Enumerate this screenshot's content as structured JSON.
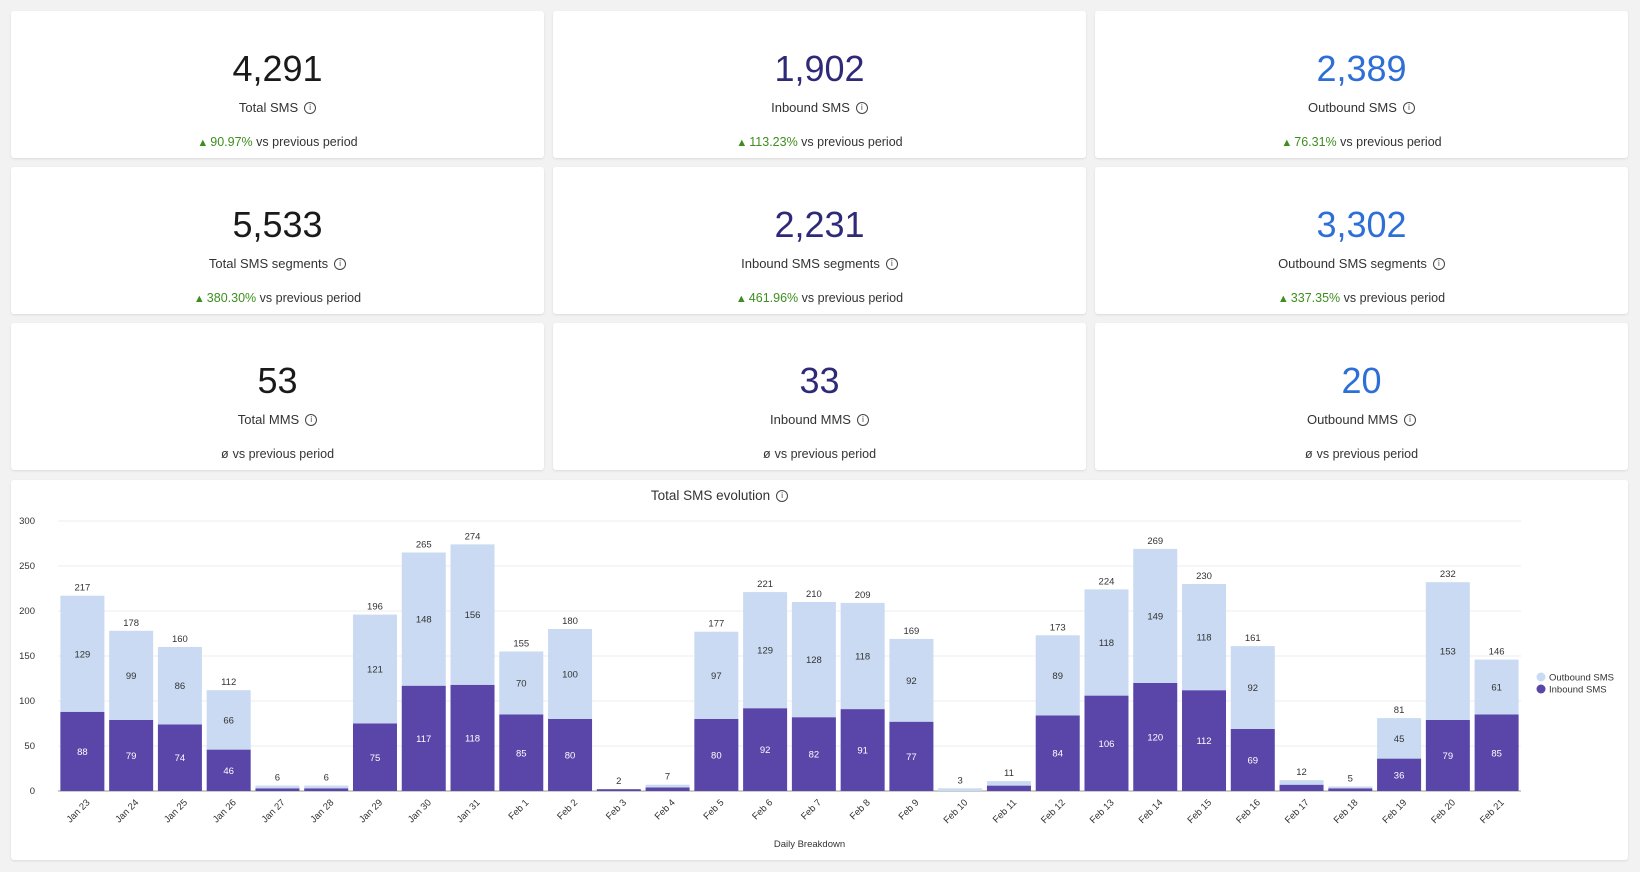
{
  "cards": [
    {
      "value": "4,291",
      "label": "Total SMS",
      "pct": "90.97%",
      "trend": "up",
      "compare_text": "vs previous period"
    },
    {
      "value": "1,902",
      "label": "Inbound SMS",
      "pct": "113.23%",
      "trend": "up",
      "compare_text": "vs previous period"
    },
    {
      "value": "2,389",
      "label": "Outbound SMS",
      "pct": "76.31%",
      "trend": "up",
      "compare_text": "vs previous period"
    },
    {
      "value": "5,533",
      "label": "Total SMS segments",
      "pct": "380.30%",
      "trend": "up",
      "compare_text": "vs previous period"
    },
    {
      "value": "2,231",
      "label": "Inbound SMS segments",
      "pct": "461.96%",
      "trend": "up",
      "compare_text": "vs previous period"
    },
    {
      "value": "3,302",
      "label": "Outbound SMS segments",
      "pct": "337.35%",
      "trend": "up",
      "compare_text": "vs previous period"
    },
    {
      "value": "53",
      "label": "Total MMS",
      "pct": "ø",
      "trend": "none",
      "compare_text": "vs previous period"
    },
    {
      "value": "33",
      "label": "Inbound MMS",
      "pct": "ø",
      "trend": "none",
      "compare_text": "vs previous period"
    },
    {
      "value": "20",
      "label": "Outbound MMS",
      "pct": "ø",
      "trend": "none",
      "compare_text": "vs previous period"
    }
  ],
  "icons": {
    "info": "info-icon",
    "trend_up": "triangle-up-icon"
  },
  "colors": {
    "inbound": "#5a45a8",
    "outbound": "#c9daf2",
    "total_value": "#1a1a1a",
    "inbound_value": "#2e2a78",
    "outbound_value": "#2d6fd6",
    "trend_up": "#3e8e1e"
  },
  "chart_data": {
    "type": "bar",
    "stacked": true,
    "title": "Total SMS evolution",
    "xlabel": "Daily Breakdown",
    "ylabel": "",
    "ylim": [
      0,
      300
    ],
    "yticks": [
      0,
      50,
      100,
      150,
      200,
      250,
      300
    ],
    "grid": true,
    "legend_position": "right",
    "categories": [
      "Jan 23",
      "Jan 24",
      "Jan 25",
      "Jan 26",
      "Jan 27",
      "Jan 28",
      "Jan 29",
      "Jan 30",
      "Jan 31",
      "Feb 1",
      "Feb 2",
      "Feb 3",
      "Feb 4",
      "Feb 5",
      "Feb 6",
      "Feb 7",
      "Feb 8",
      "Feb 9",
      "Feb 10",
      "Feb 11",
      "Feb 12",
      "Feb 13",
      "Feb 14",
      "Feb 15",
      "Feb 16",
      "Feb 17",
      "Feb 18",
      "Feb 19",
      "Feb 20",
      "Feb 21"
    ],
    "series": [
      {
        "name": "Inbound SMS",
        "values": [
          88,
          79,
          74,
          46,
          3,
          3,
          75,
          117,
          118,
          85,
          80,
          2,
          4,
          80,
          92,
          82,
          91,
          77,
          0,
          6,
          84,
          106,
          120,
          112,
          69,
          7,
          3,
          36,
          79,
          85
        ]
      },
      {
        "name": "Outbound SMS",
        "values": [
          129,
          99,
          86,
          66,
          3,
          3,
          121,
          148,
          156,
          70,
          100,
          0,
          3,
          97,
          129,
          128,
          118,
          92,
          3,
          5,
          89,
          118,
          149,
          118,
          92,
          5,
          2,
          45,
          153,
          61
        ]
      }
    ],
    "totals": [
      217,
      178,
      160,
      112,
      6,
      6,
      196,
      265,
      274,
      155,
      180,
      2,
      7,
      177,
      221,
      210,
      209,
      169,
      3,
      11,
      173,
      224,
      269,
      230,
      161,
      12,
      5,
      81,
      232,
      146
    ],
    "legend": [
      {
        "name": "Outbound SMS"
      },
      {
        "name": "Inbound SMS"
      }
    ]
  }
}
